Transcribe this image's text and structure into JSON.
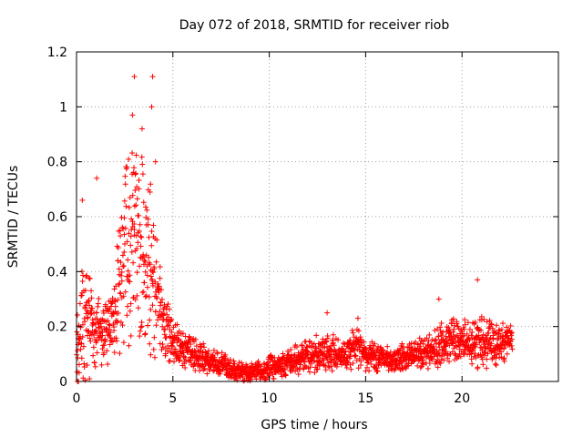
{
  "chart_data": {
    "type": "scatter",
    "title": "Day 072 of 2018, SRMTID for receiver riob",
    "xlabel": "GPS time / hours",
    "ylabel": "SRMTID / TECUs",
    "xlim": [
      0,
      25
    ],
    "ylim": [
      0,
      1.2
    ],
    "xticks": [
      0,
      5,
      10,
      15,
      20
    ],
    "xtick_labels": [
      "0",
      "5",
      "10",
      "15",
      "20"
    ],
    "yticks": [
      0,
      0.2,
      0.4,
      0.6,
      0.8,
      1.0,
      1.2
    ],
    "ytick_labels": [
      "0",
      "0.2",
      "0.4",
      "0.6",
      "0.8",
      "1",
      "1.2"
    ],
    "grid": true,
    "marker": "+",
    "color": "#ff0000",
    "series": [
      {
        "name": "SRMTID",
        "envelope": [
          {
            "x": 0.0,
            "center": 0.14,
            "spread": 0.12
          },
          {
            "x": 0.5,
            "center": 0.28,
            "spread": 0.22
          },
          {
            "x": 1.0,
            "center": 0.16,
            "spread": 0.14
          },
          {
            "x": 1.5,
            "center": 0.18,
            "spread": 0.12
          },
          {
            "x": 2.0,
            "center": 0.26,
            "spread": 0.14
          },
          {
            "x": 2.5,
            "center": 0.45,
            "spread": 0.3
          },
          {
            "x": 3.0,
            "center": 0.5,
            "spread": 0.35
          },
          {
            "x": 3.5,
            "center": 0.45,
            "spread": 0.3
          },
          {
            "x": 4.0,
            "center": 0.42,
            "spread": 0.28
          },
          {
            "x": 4.5,
            "center": 0.22,
            "spread": 0.12
          },
          {
            "x": 5.0,
            "center": 0.14,
            "spread": 0.07
          },
          {
            "x": 6.0,
            "center": 0.1,
            "spread": 0.05
          },
          {
            "x": 7.0,
            "center": 0.07,
            "spread": 0.04
          },
          {
            "x": 8.0,
            "center": 0.05,
            "spread": 0.04
          },
          {
            "x": 9.0,
            "center": 0.03,
            "spread": 0.03
          },
          {
            "x": 10.0,
            "center": 0.05,
            "spread": 0.04
          },
          {
            "x": 11.0,
            "center": 0.07,
            "spread": 0.04
          },
          {
            "x": 12.0,
            "center": 0.09,
            "spread": 0.05
          },
          {
            "x": 13.0,
            "center": 0.11,
            "spread": 0.06
          },
          {
            "x": 14.0,
            "center": 0.09,
            "spread": 0.05
          },
          {
            "x": 14.5,
            "center": 0.13,
            "spread": 0.07
          },
          {
            "x": 15.0,
            "center": 0.09,
            "spread": 0.05
          },
          {
            "x": 16.0,
            "center": 0.08,
            "spread": 0.04
          },
          {
            "x": 17.0,
            "center": 0.09,
            "spread": 0.05
          },
          {
            "x": 18.0,
            "center": 0.1,
            "spread": 0.05
          },
          {
            "x": 19.0,
            "center": 0.14,
            "spread": 0.07
          },
          {
            "x": 20.0,
            "center": 0.15,
            "spread": 0.07
          },
          {
            "x": 21.0,
            "center": 0.14,
            "spread": 0.08
          },
          {
            "x": 22.0,
            "center": 0.13,
            "spread": 0.07
          },
          {
            "x": 22.6,
            "center": 0.15,
            "spread": 0.05
          }
        ],
        "notable_points": [
          {
            "x": 3.0,
            "y": 1.11
          },
          {
            "x": 3.95,
            "y": 1.11
          },
          {
            "x": 3.9,
            "y": 1.0
          },
          {
            "x": 2.9,
            "y": 0.97
          },
          {
            "x": 3.4,
            "y": 0.92
          },
          {
            "x": 4.1,
            "y": 0.8
          },
          {
            "x": 1.05,
            "y": 0.74
          },
          {
            "x": 0.3,
            "y": 0.66
          },
          {
            "x": 20.8,
            "y": 0.37
          },
          {
            "x": 18.8,
            "y": 0.3
          },
          {
            "x": 13.0,
            "y": 0.25
          },
          {
            "x": 14.6,
            "y": 0.23
          }
        ],
        "x_end": 22.6,
        "samples_per_hour": 90
      }
    ]
  }
}
